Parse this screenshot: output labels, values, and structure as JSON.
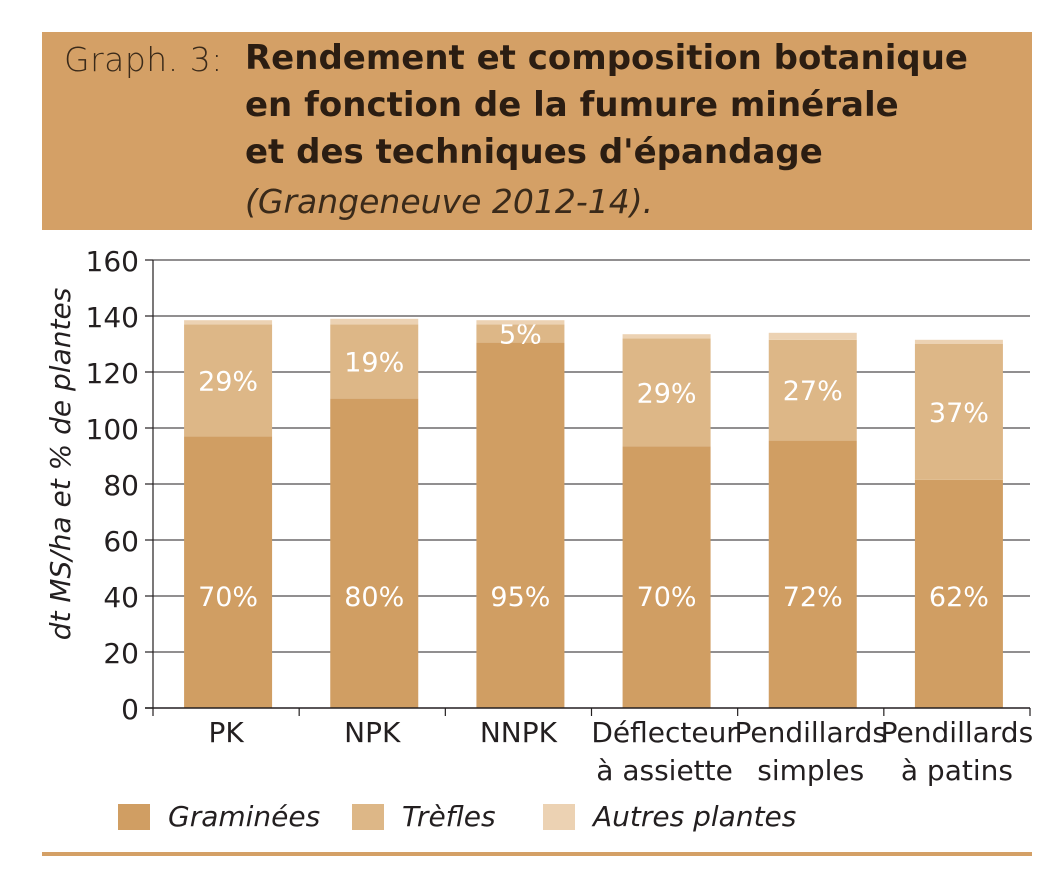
{
  "header": {
    "label": "Graph. 3:",
    "title_lines": [
      "Rendement et composition botanique",
      "en fonction de la fumure minérale",
      "et des techniques d'épandage"
    ],
    "subtitle": "(Grangeneuve 2012-14)."
  },
  "colors": {
    "header_bg": "#d4a066",
    "graminees": "#d09e63",
    "trefles": "#ddb787",
    "autres": "#ecd2b3",
    "grid": "#231f20"
  },
  "chart_data": {
    "type": "bar",
    "stacked": true,
    "title": "Rendement et composition botanique en fonction de la fumure minérale et des techniques d'épandage",
    "ylabel": "dt MS/ha et % de plantes",
    "xlabel": "",
    "ylim": [
      0,
      160
    ],
    "yticks": [
      0,
      20,
      40,
      60,
      80,
      100,
      120,
      140,
      160
    ],
    "grid": true,
    "legend_position": "bottom",
    "categories": [
      [
        "PK"
      ],
      [
        "NPK"
      ],
      [
        "NNPK"
      ],
      [
        "Déflecteur",
        "à assiette"
      ],
      [
        "Pendillards",
        "simples"
      ],
      [
        "Pendillards",
        "à patins"
      ]
    ],
    "series": [
      {
        "name": "Graminées",
        "values": [
          97,
          110.5,
          130.5,
          93.5,
          95.5,
          81.5
        ],
        "labels": [
          "70%",
          "80%",
          "95%",
          "70%",
          "72%",
          "62%"
        ]
      },
      {
        "name": "Trèfles",
        "values": [
          40,
          26.5,
          6.5,
          38.5,
          36,
          48.5
        ],
        "labels": [
          "29%",
          "19%",
          "5%",
          "29%",
          "27%",
          "37%"
        ]
      },
      {
        "name": "Autres plantes",
        "values": [
          1.5,
          2,
          1.5,
          1.5,
          2.5,
          1.5
        ],
        "labels": [
          "",
          "",
          "",
          "",
          "",
          ""
        ]
      }
    ]
  }
}
